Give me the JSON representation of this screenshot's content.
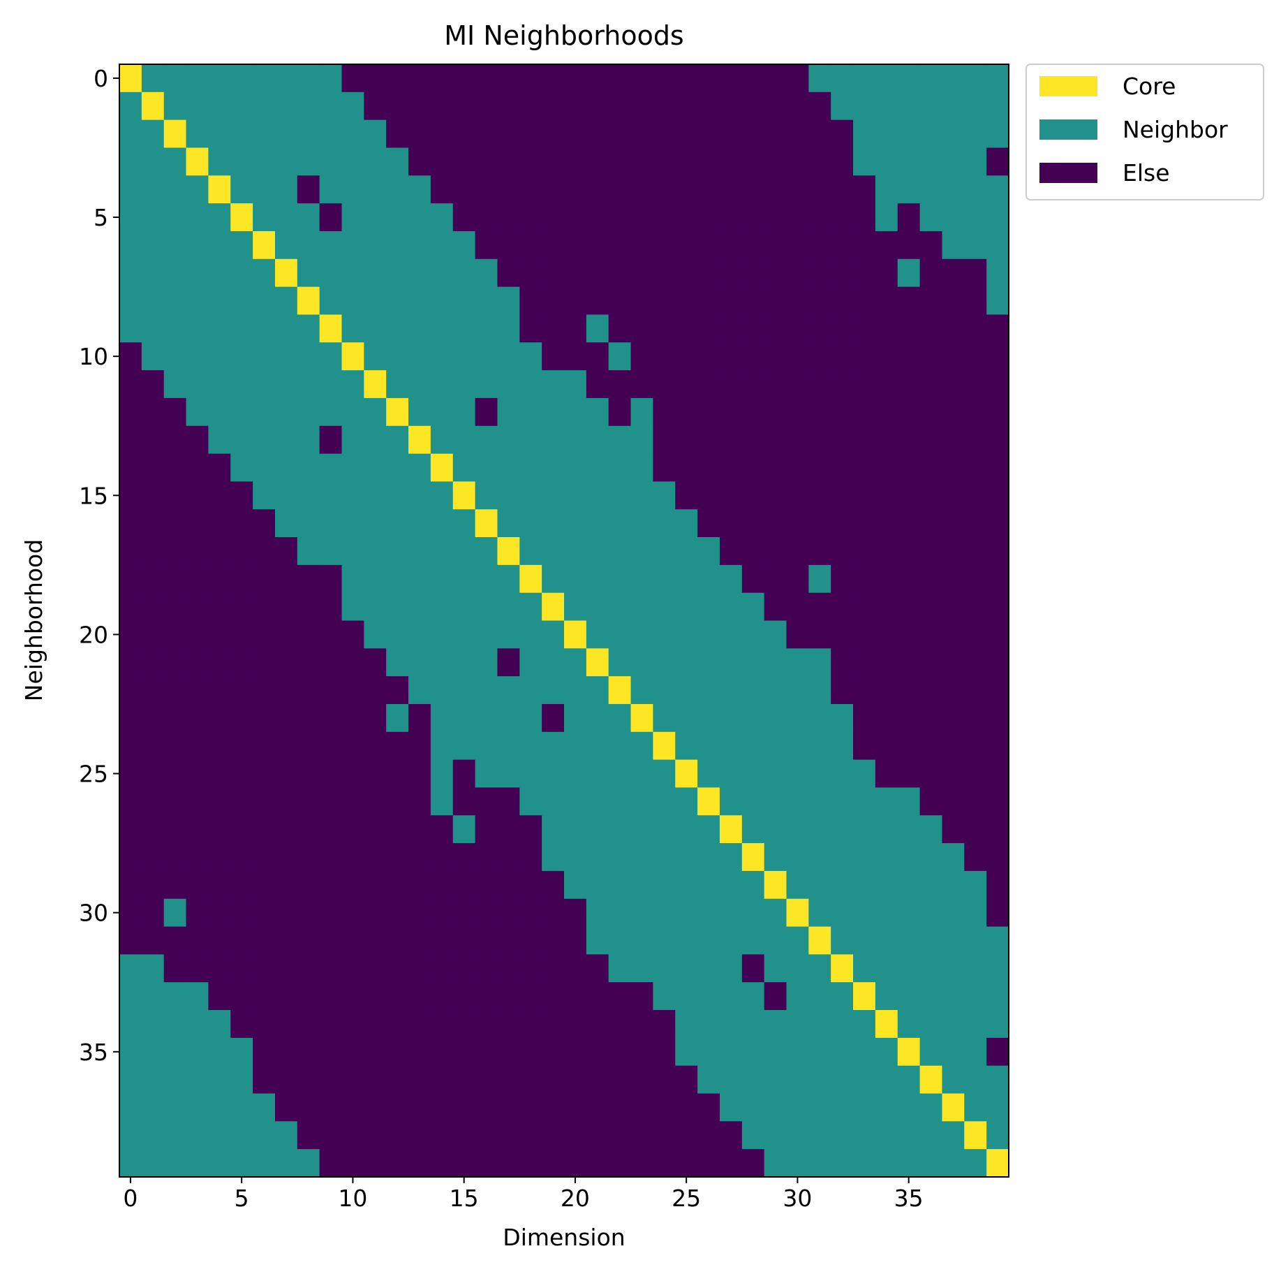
{
  "chart_data": {
    "type": "heatmap",
    "title": "MI Neighborhoods",
    "xlabel": "Dimension",
    "ylabel": "Neighborhood",
    "n_rows": 40,
    "n_cols": 40,
    "xticks": [
      0,
      5,
      10,
      15,
      20,
      25,
      30,
      35
    ],
    "yticks": [
      0,
      5,
      10,
      15,
      20,
      25,
      30,
      35
    ],
    "grid": false,
    "legend_position": "outside-top-right",
    "categories": [
      {
        "code": 2,
        "label": "Core",
        "color": "#fde725"
      },
      {
        "code": 1,
        "label": "Neighbor",
        "color": "#21918c"
      },
      {
        "code": 0,
        "label": "Else",
        "color": "#440154"
      }
    ],
    "values": [
      [
        2,
        1,
        1,
        1,
        1,
        1,
        1,
        1,
        1,
        1,
        0,
        0,
        0,
        0,
        0,
        0,
        0,
        0,
        0,
        0,
        0,
        0,
        0,
        0,
        0,
        0,
        0,
        0,
        0,
        0,
        0,
        1,
        1,
        1,
        1,
        1,
        1,
        1,
        1,
        1
      ],
      [
        1,
        2,
        1,
        1,
        1,
        1,
        1,
        1,
        1,
        1,
        1,
        0,
        0,
        0,
        0,
        0,
        0,
        0,
        0,
        0,
        0,
        0,
        0,
        0,
        0,
        0,
        0,
        0,
        0,
        0,
        0,
        0,
        1,
        1,
        1,
        1,
        1,
        1,
        1,
        1
      ],
      [
        1,
        1,
        2,
        1,
        1,
        1,
        1,
        1,
        1,
        1,
        1,
        1,
        0,
        0,
        0,
        0,
        0,
        0,
        0,
        0,
        0,
        0,
        0,
        0,
        0,
        0,
        0,
        0,
        0,
        0,
        0,
        0,
        0,
        1,
        1,
        1,
        1,
        1,
        1,
        1
      ],
      [
        1,
        1,
        1,
        2,
        1,
        1,
        1,
        1,
        1,
        1,
        1,
        1,
        1,
        0,
        0,
        0,
        0,
        0,
        0,
        0,
        0,
        0,
        0,
        0,
        0,
        0,
        0,
        0,
        0,
        0,
        0,
        0,
        0,
        1,
        1,
        1,
        1,
        1,
        1,
        0
      ],
      [
        1,
        1,
        1,
        1,
        2,
        1,
        1,
        1,
        0,
        1,
        1,
        1,
        1,
        1,
        0,
        0,
        0,
        0,
        0,
        0,
        0,
        0,
        0,
        0,
        0,
        0,
        0,
        0,
        0,
        0,
        0,
        0,
        0,
        0,
        1,
        1,
        1,
        1,
        1,
        1
      ],
      [
        1,
        1,
        1,
        1,
        1,
        2,
        1,
        1,
        1,
        0,
        1,
        1,
        1,
        1,
        1,
        0,
        0,
        0,
        0,
        0,
        0,
        0,
        0,
        0,
        0,
        0,
        0,
        0,
        0,
        0,
        0,
        0,
        0,
        0,
        1,
        0,
        1,
        1,
        1,
        1
      ],
      [
        1,
        1,
        1,
        1,
        1,
        1,
        2,
        1,
        1,
        1,
        1,
        1,
        1,
        1,
        1,
        1,
        0,
        0,
        0,
        0,
        0,
        0,
        0,
        0,
        0,
        0,
        0,
        0,
        0,
        0,
        0,
        0,
        0,
        0,
        0,
        0,
        0,
        1,
        1,
        1
      ],
      [
        1,
        1,
        1,
        1,
        1,
        1,
        1,
        2,
        1,
        1,
        1,
        1,
        1,
        1,
        1,
        1,
        1,
        0,
        0,
        0,
        0,
        0,
        0,
        0,
        0,
        0,
        0,
        0,
        0,
        0,
        0,
        0,
        0,
        0,
        0,
        1,
        0,
        0,
        0,
        1
      ],
      [
        1,
        1,
        1,
        1,
        1,
        1,
        1,
        1,
        2,
        1,
        1,
        1,
        1,
        1,
        1,
        1,
        1,
        1,
        0,
        0,
        0,
        0,
        0,
        0,
        0,
        0,
        0,
        0,
        0,
        0,
        0,
        0,
        0,
        0,
        0,
        0,
        0,
        0,
        0,
        1
      ],
      [
        1,
        1,
        1,
        1,
        1,
        1,
        1,
        1,
        1,
        2,
        1,
        1,
        1,
        1,
        1,
        1,
        1,
        1,
        0,
        0,
        0,
        1,
        0,
        0,
        0,
        0,
        0,
        0,
        0,
        0,
        0,
        0,
        0,
        0,
        0,
        0,
        0,
        0,
        0,
        0
      ],
      [
        0,
        1,
        1,
        1,
        1,
        1,
        1,
        1,
        1,
        1,
        2,
        1,
        1,
        1,
        1,
        1,
        1,
        1,
        1,
        0,
        0,
        0,
        1,
        0,
        0,
        0,
        0,
        0,
        0,
        0,
        0,
        0,
        0,
        0,
        0,
        0,
        0,
        0,
        0,
        0
      ],
      [
        0,
        0,
        1,
        1,
        1,
        1,
        1,
        1,
        1,
        1,
        1,
        2,
        1,
        1,
        1,
        1,
        1,
        1,
        1,
        1,
        1,
        0,
        0,
        0,
        0,
        0,
        0,
        0,
        0,
        0,
        0,
        0,
        0,
        0,
        0,
        0,
        0,
        0,
        0,
        0
      ],
      [
        0,
        0,
        0,
        1,
        1,
        1,
        1,
        1,
        1,
        1,
        1,
        1,
        2,
        1,
        1,
        1,
        0,
        1,
        1,
        1,
        1,
        1,
        0,
        1,
        0,
        0,
        0,
        0,
        0,
        0,
        0,
        0,
        0,
        0,
        0,
        0,
        0,
        0,
        0,
        0
      ],
      [
        0,
        0,
        0,
        0,
        1,
        1,
        1,
        1,
        1,
        0,
        1,
        1,
        1,
        2,
        1,
        1,
        1,
        1,
        1,
        1,
        1,
        1,
        1,
        1,
        0,
        0,
        0,
        0,
        0,
        0,
        0,
        0,
        0,
        0,
        0,
        0,
        0,
        0,
        0,
        0
      ],
      [
        0,
        0,
        0,
        0,
        0,
        1,
        1,
        1,
        1,
        1,
        1,
        1,
        1,
        1,
        2,
        1,
        1,
        1,
        1,
        1,
        1,
        1,
        1,
        1,
        0,
        0,
        0,
        0,
        0,
        0,
        0,
        0,
        0,
        0,
        0,
        0,
        0,
        0,
        0,
        0
      ],
      [
        0,
        0,
        0,
        0,
        0,
        0,
        1,
        1,
        1,
        1,
        1,
        1,
        1,
        1,
        1,
        2,
        1,
        1,
        1,
        1,
        1,
        1,
        1,
        1,
        1,
        0,
        0,
        0,
        0,
        0,
        0,
        0,
        0,
        0,
        0,
        0,
        0,
        0,
        0,
        0
      ],
      [
        0,
        0,
        0,
        0,
        0,
        0,
        0,
        1,
        1,
        1,
        1,
        1,
        1,
        1,
        1,
        1,
        2,
        1,
        1,
        1,
        1,
        1,
        1,
        1,
        1,
        1,
        0,
        0,
        0,
        0,
        0,
        0,
        0,
        0,
        0,
        0,
        0,
        0,
        0,
        0
      ],
      [
        0,
        0,
        0,
        0,
        0,
        0,
        0,
        0,
        1,
        1,
        1,
        1,
        1,
        1,
        1,
        1,
        1,
        2,
        1,
        1,
        1,
        1,
        1,
        1,
        1,
        1,
        1,
        0,
        0,
        0,
        0,
        0,
        0,
        0,
        0,
        0,
        0,
        0,
        0,
        0
      ],
      [
        0,
        0,
        0,
        0,
        0,
        0,
        0,
        0,
        0,
        0,
        1,
        1,
        1,
        1,
        1,
        1,
        1,
        1,
        2,
        1,
        1,
        1,
        1,
        1,
        1,
        1,
        1,
        1,
        0,
        0,
        0,
        1,
        0,
        0,
        0,
        0,
        0,
        0,
        0,
        0
      ],
      [
        0,
        0,
        0,
        0,
        0,
        0,
        0,
        0,
        0,
        0,
        1,
        1,
        1,
        1,
        1,
        1,
        1,
        1,
        1,
        2,
        1,
        1,
        1,
        1,
        1,
        1,
        1,
        1,
        1,
        0,
        0,
        0,
        0,
        0,
        0,
        0,
        0,
        0,
        0,
        0
      ],
      [
        0,
        0,
        0,
        0,
        0,
        0,
        0,
        0,
        0,
        0,
        0,
        1,
        1,
        1,
        1,
        1,
        1,
        1,
        1,
        1,
        2,
        1,
        1,
        1,
        1,
        1,
        1,
        1,
        1,
        1,
        0,
        0,
        0,
        0,
        0,
        0,
        0,
        0,
        0,
        0
      ],
      [
        0,
        0,
        0,
        0,
        0,
        0,
        0,
        0,
        0,
        0,
        0,
        0,
        1,
        1,
        1,
        1,
        1,
        0,
        1,
        1,
        1,
        2,
        1,
        1,
        1,
        1,
        1,
        1,
        1,
        1,
        1,
        1,
        0,
        0,
        0,
        0,
        0,
        0,
        0,
        0
      ],
      [
        0,
        0,
        0,
        0,
        0,
        0,
        0,
        0,
        0,
        0,
        0,
        0,
        0,
        1,
        1,
        1,
        1,
        1,
        1,
        1,
        1,
        1,
        2,
        1,
        1,
        1,
        1,
        1,
        1,
        1,
        1,
        1,
        0,
        0,
        0,
        0,
        0,
        0,
        0,
        0
      ],
      [
        0,
        0,
        0,
        0,
        0,
        0,
        0,
        0,
        0,
        0,
        0,
        0,
        1,
        0,
        1,
        1,
        1,
        1,
        1,
        0,
        1,
        1,
        1,
        2,
        1,
        1,
        1,
        1,
        1,
        1,
        1,
        1,
        1,
        0,
        0,
        0,
        0,
        0,
        0,
        0
      ],
      [
        0,
        0,
        0,
        0,
        0,
        0,
        0,
        0,
        0,
        0,
        0,
        0,
        0,
        0,
        1,
        1,
        1,
        1,
        1,
        1,
        1,
        1,
        1,
        1,
        2,
        1,
        1,
        1,
        1,
        1,
        1,
        1,
        1,
        0,
        0,
        0,
        0,
        0,
        0,
        0
      ],
      [
        0,
        0,
        0,
        0,
        0,
        0,
        0,
        0,
        0,
        0,
        0,
        0,
        0,
        0,
        1,
        0,
        1,
        1,
        1,
        1,
        1,
        1,
        1,
        1,
        1,
        2,
        1,
        1,
        1,
        1,
        1,
        1,
        1,
        1,
        0,
        0,
        0,
        0,
        0,
        0
      ],
      [
        0,
        0,
        0,
        0,
        0,
        0,
        0,
        0,
        0,
        0,
        0,
        0,
        0,
        0,
        1,
        0,
        0,
        0,
        1,
        1,
        1,
        1,
        1,
        1,
        1,
        1,
        2,
        1,
        1,
        1,
        1,
        1,
        1,
        1,
        1,
        1,
        0,
        0,
        0,
        0
      ],
      [
        0,
        0,
        0,
        0,
        0,
        0,
        0,
        0,
        0,
        0,
        0,
        0,
        0,
        0,
        0,
        1,
        0,
        0,
        0,
        1,
        1,
        1,
        1,
        1,
        1,
        1,
        1,
        2,
        1,
        1,
        1,
        1,
        1,
        1,
        1,
        1,
        1,
        0,
        0,
        0
      ],
      [
        0,
        0,
        0,
        0,
        0,
        0,
        0,
        0,
        0,
        0,
        0,
        0,
        0,
        0,
        0,
        0,
        0,
        0,
        0,
        1,
        1,
        1,
        1,
        1,
        1,
        1,
        1,
        1,
        2,
        1,
        1,
        1,
        1,
        1,
        1,
        1,
        1,
        1,
        0,
        0
      ],
      [
        0,
        0,
        0,
        0,
        0,
        0,
        0,
        0,
        0,
        0,
        0,
        0,
        0,
        0,
        0,
        0,
        0,
        0,
        0,
        0,
        1,
        1,
        1,
        1,
        1,
        1,
        1,
        1,
        1,
        2,
        1,
        1,
        1,
        1,
        1,
        1,
        1,
        1,
        1,
        0
      ],
      [
        0,
        0,
        1,
        0,
        0,
        0,
        0,
        0,
        0,
        0,
        0,
        0,
        0,
        0,
        0,
        0,
        0,
        0,
        0,
        0,
        0,
        1,
        1,
        1,
        1,
        1,
        1,
        1,
        1,
        1,
        2,
        1,
        1,
        1,
        1,
        1,
        1,
        1,
        1,
        0
      ],
      [
        0,
        0,
        0,
        0,
        0,
        0,
        0,
        0,
        0,
        0,
        0,
        0,
        0,
        0,
        0,
        0,
        0,
        0,
        0,
        0,
        0,
        1,
        1,
        1,
        1,
        1,
        1,
        1,
        1,
        1,
        1,
        2,
        1,
        1,
        1,
        1,
        1,
        1,
        1,
        1
      ],
      [
        1,
        1,
        0,
        0,
        0,
        0,
        0,
        0,
        0,
        0,
        0,
        0,
        0,
        0,
        0,
        0,
        0,
        0,
        0,
        0,
        0,
        0,
        1,
        1,
        1,
        1,
        1,
        1,
        0,
        1,
        1,
        1,
        2,
        1,
        1,
        1,
        1,
        1,
        1,
        1
      ],
      [
        1,
        1,
        1,
        1,
        0,
        0,
        0,
        0,
        0,
        0,
        0,
        0,
        0,
        0,
        0,
        0,
        0,
        0,
        0,
        0,
        0,
        0,
        0,
        0,
        1,
        1,
        1,
        1,
        1,
        0,
        1,
        1,
        1,
        2,
        1,
        1,
        1,
        1,
        1,
        1
      ],
      [
        1,
        1,
        1,
        1,
        1,
        0,
        0,
        0,
        0,
        0,
        0,
        0,
        0,
        0,
        0,
        0,
        0,
        0,
        0,
        0,
        0,
        0,
        0,
        0,
        0,
        1,
        1,
        1,
        1,
        1,
        1,
        1,
        1,
        1,
        2,
        1,
        1,
        1,
        1,
        1
      ],
      [
        1,
        1,
        1,
        1,
        1,
        1,
        0,
        0,
        0,
        0,
        0,
        0,
        0,
        0,
        0,
        0,
        0,
        0,
        0,
        0,
        0,
        0,
        0,
        0,
        0,
        1,
        1,
        1,
        1,
        1,
        1,
        1,
        1,
        1,
        1,
        2,
        1,
        1,
        1,
        0
      ],
      [
        1,
        1,
        1,
        1,
        1,
        1,
        0,
        0,
        0,
        0,
        0,
        0,
        0,
        0,
        0,
        0,
        0,
        0,
        0,
        0,
        0,
        0,
        0,
        0,
        0,
        0,
        1,
        1,
        1,
        1,
        1,
        1,
        1,
        1,
        1,
        1,
        2,
        1,
        1,
        1
      ],
      [
        1,
        1,
        1,
        1,
        1,
        1,
        1,
        0,
        0,
        0,
        0,
        0,
        0,
        0,
        0,
        0,
        0,
        0,
        0,
        0,
        0,
        0,
        0,
        0,
        0,
        0,
        0,
        1,
        1,
        1,
        1,
        1,
        1,
        1,
        1,
        1,
        1,
        2,
        1,
        1
      ],
      [
        1,
        1,
        1,
        1,
        1,
        1,
        1,
        1,
        0,
        0,
        0,
        0,
        0,
        0,
        0,
        0,
        0,
        0,
        0,
        0,
        0,
        0,
        0,
        0,
        0,
        0,
        0,
        0,
        1,
        1,
        1,
        1,
        1,
        1,
        1,
        1,
        1,
        1,
        2,
        1
      ],
      [
        1,
        1,
        1,
        1,
        1,
        1,
        1,
        1,
        1,
        0,
        0,
        0,
        0,
        0,
        0,
        0,
        0,
        0,
        0,
        0,
        0,
        0,
        0,
        0,
        0,
        0,
        0,
        0,
        0,
        1,
        1,
        1,
        1,
        1,
        1,
        1,
        1,
        1,
        1,
        2
      ]
    ]
  }
}
